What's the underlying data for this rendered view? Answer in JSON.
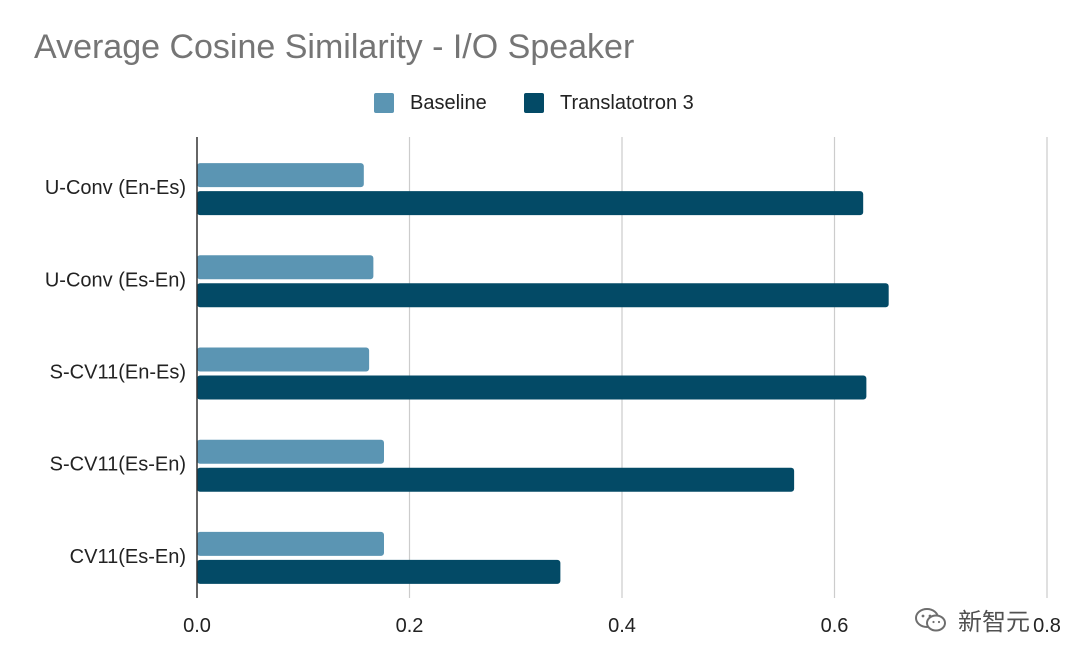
{
  "chart_data": {
    "type": "bar",
    "orientation": "horizontal",
    "title": "Average Cosine Similarity - I/O Speaker",
    "xlabel": "",
    "ylabel": "",
    "categories": [
      "U-Conv (En-Es)",
      "U-Conv (Es-En)",
      "S-CV11(En-Es)",
      "S-CV11(Es-En)",
      "CV11(Es-En)"
    ],
    "series": [
      {
        "name": "Baseline",
        "color": "#5b95b3",
        "values": [
          0.157,
          0.166,
          0.162,
          0.176,
          0.176
        ]
      },
      {
        "name": "Translatotron 3",
        "color": "#034a66",
        "values": [
          0.627,
          0.651,
          0.63,
          0.562,
          0.342
        ]
      }
    ],
    "xlim": [
      0,
      0.8
    ],
    "xticks": [
      "0.0",
      "0.2",
      "0.4",
      "0.6",
      "0.8"
    ],
    "xtick_values": [
      0,
      0.2,
      0.4,
      0.6,
      0.8
    ],
    "grid": true,
    "legend_position": "top-center"
  },
  "watermark": {
    "text": "新智元",
    "icon": "wechat-icon"
  }
}
